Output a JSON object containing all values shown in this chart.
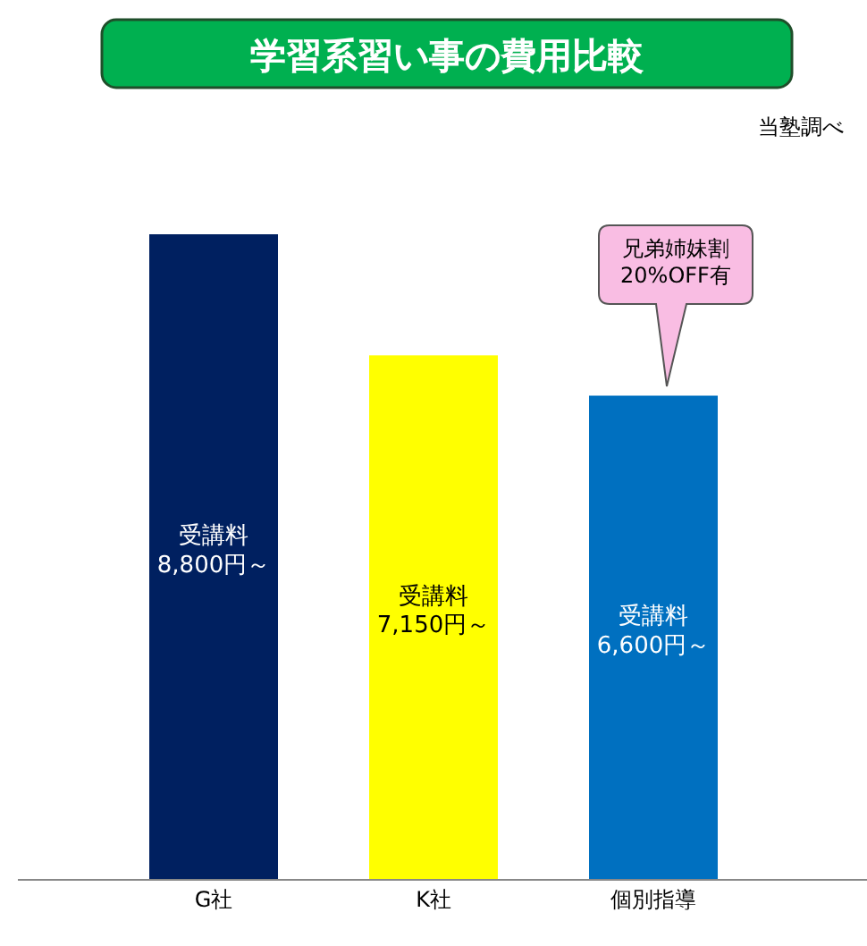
{
  "chart_data": {
    "type": "bar",
    "title": "学習系習い事の費用比較",
    "categories": [
      "G社",
      "K社",
      "個別指導"
    ],
    "series": [
      {
        "colors": [
          "#002060",
          "#ffff00",
          "#0070c0"
        ],
        "values": [
          8800,
          7150,
          6600
        ],
        "value_labels": [
          "受講料\n8,800円～",
          "受講料\n7,150円～",
          "受講料\n6,600円～"
        ]
      }
    ],
    "annotations": [
      "当塾調べ",
      "兄弟姉妹割\n20%OFF有"
    ]
  }
}
